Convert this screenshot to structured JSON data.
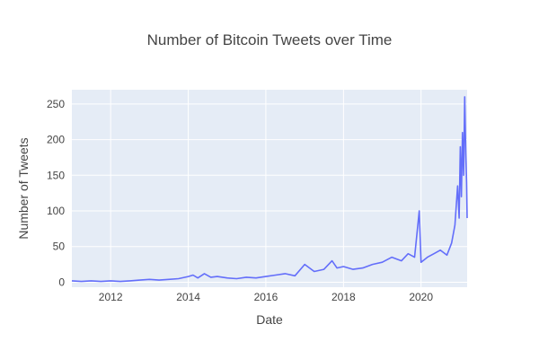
{
  "chart_data": {
    "type": "line",
    "title": "Number of Bitcoin Tweets over Time",
    "xlabel": "Date",
    "ylabel": "Number of Tweets",
    "x_range": [
      "2011-01-01",
      "2021-03-10"
    ],
    "ylim": [
      -7,
      270
    ],
    "x_ticks": [
      "2012",
      "2014",
      "2016",
      "2018",
      "2020"
    ],
    "y_ticks": [
      0,
      50,
      100,
      150,
      200,
      250
    ],
    "grid": true,
    "legend": "none",
    "colors": {
      "line": "#636efa",
      "plot_bg": "#e5ecf6",
      "grid": "#ffffff",
      "text": "#444444"
    },
    "series": [
      {
        "x": [
          "2011-01-01",
          "2011-04-01",
          "2011-07-01",
          "2011-10-01",
          "2012-01-01",
          "2012-04-01",
          "2012-07-01",
          "2012-10-01",
          "2013-01-01",
          "2013-04-01",
          "2013-07-01",
          "2013-10-01",
          "2014-01-01",
          "2014-02-15",
          "2014-04-01",
          "2014-06-01",
          "2014-08-01",
          "2014-10-01",
          "2015-01-01",
          "2015-04-01",
          "2015-07-01",
          "2015-10-01",
          "2016-01-01",
          "2016-04-01",
          "2016-07-01",
          "2016-10-01",
          "2017-01-01",
          "2017-04-01",
          "2017-07-01",
          "2017-09-15",
          "2017-11-01",
          "2018-01-01",
          "2018-04-01",
          "2018-07-01",
          "2018-10-01",
          "2019-01-01",
          "2019-04-01",
          "2019-07-01",
          "2019-09-01",
          "2019-11-01",
          "2019-12-15",
          "2020-01-01",
          "2020-03-01",
          "2020-05-01",
          "2020-07-01",
          "2020-09-01",
          "2020-10-15",
          "2020-11-15",
          "2020-12-10",
          "2020-12-25",
          "2021-01-05",
          "2021-01-15",
          "2021-01-25",
          "2021-02-05",
          "2021-02-15",
          "2021-02-25",
          "2021-03-05",
          "2021-03-10"
        ],
        "y": [
          2,
          1,
          2,
          1,
          2,
          1,
          2,
          3,
          4,
          3,
          4,
          5,
          8,
          10,
          6,
          12,
          7,
          8,
          6,
          5,
          7,
          6,
          8,
          10,
          12,
          9,
          25,
          15,
          18,
          30,
          20,
          22,
          18,
          20,
          25,
          28,
          35,
          30,
          40,
          35,
          100,
          28,
          35,
          40,
          45,
          38,
          55,
          80,
          135,
          90,
          190,
          120,
          210,
          150,
          260,
          180,
          140,
          90
        ]
      }
    ]
  }
}
